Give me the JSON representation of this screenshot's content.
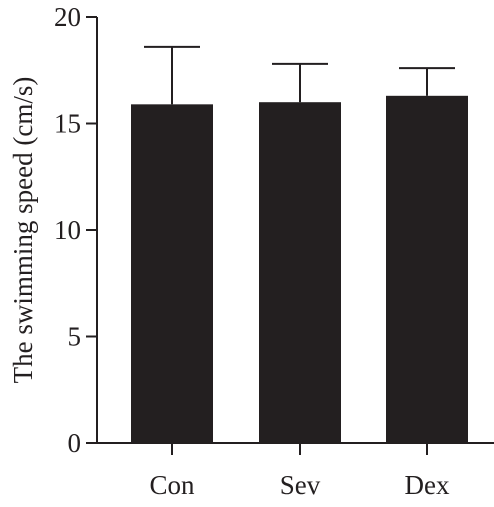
{
  "chart_data": {
    "type": "bar",
    "title": "",
    "xlabel": "",
    "ylabel": "The swimming speed (cm/s)",
    "categories": [
      "Con",
      "Sev",
      "Dex"
    ],
    "series": [
      {
        "values": [
          15.9,
          16.0,
          16.3
        ],
        "error_upper": [
          2.7,
          1.8,
          1.3
        ]
      }
    ],
    "ylim": [
      0,
      20
    ],
    "yticks": [
      0,
      5,
      10,
      15,
      20
    ],
    "ytick_labels": [
      "0",
      "5",
      "10",
      "15",
      "20"
    ],
    "grid": false,
    "legend": "none",
    "colors": {
      "bar": "#231f20",
      "axis": "#231f20",
      "text": "#231f20"
    }
  }
}
